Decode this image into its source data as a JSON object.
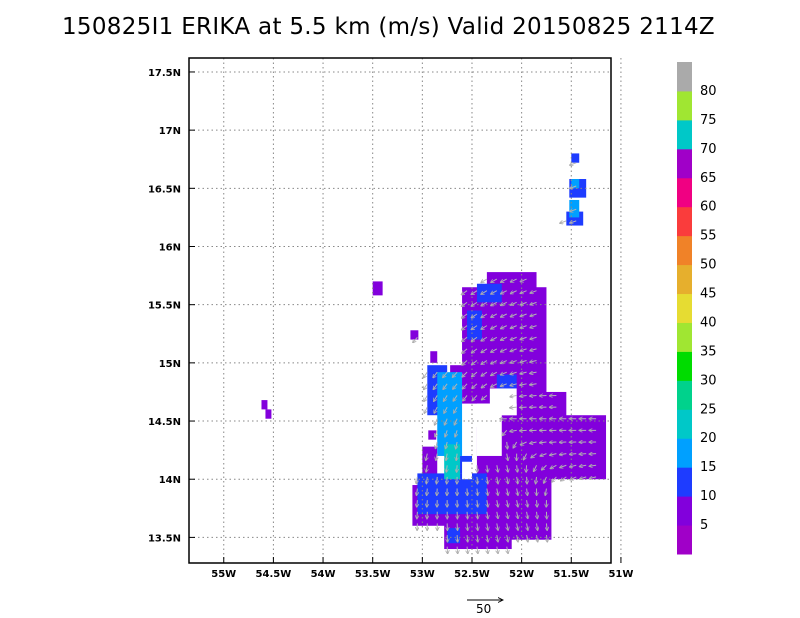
{
  "chart_data": {
    "type": "heatmap",
    "title": "150825I1 ERIKA at 5.5 km (m/s) Valid 20150825 2114Z",
    "x_ticks": [
      {
        "v": -55.0,
        "label": "55W"
      },
      {
        "v": -54.5,
        "label": "54.5W"
      },
      {
        "v": -54.0,
        "label": "54W"
      },
      {
        "v": -53.5,
        "label": "53.5W"
      },
      {
        "v": -53.0,
        "label": "53W"
      },
      {
        "v": -52.5,
        "label": "52.5W"
      },
      {
        "v": -52.0,
        "label": "52W"
      },
      {
        "v": -51.5,
        "label": "51.5W"
      },
      {
        "v": -51.0,
        "label": "51W"
      }
    ],
    "y_ticks": [
      {
        "v": 13.5,
        "label": "13.5N"
      },
      {
        "v": 14.0,
        "label": "14N"
      },
      {
        "v": 14.5,
        "label": "14.5N"
      },
      {
        "v": 15.0,
        "label": "15N"
      },
      {
        "v": 15.5,
        "label": "15.5N"
      },
      {
        "v": 16.0,
        "label": "16N"
      },
      {
        "v": 16.5,
        "label": "16.5N"
      },
      {
        "v": 17.0,
        "label": "17N"
      },
      {
        "v": 17.5,
        "label": "17.5N"
      }
    ],
    "xlim": [
      -55.35,
      -51.1
    ],
    "ylim": [
      13.28,
      17.62
    ],
    "grid": true,
    "colorbar": {
      "labels": [
        "5",
        "10",
        "15",
        "20",
        "25",
        "30",
        "35",
        "40",
        "45",
        "50",
        "55",
        "60",
        "65",
        "70",
        "75",
        "80"
      ],
      "colors": [
        "#a000c8",
        "#8200dc",
        "#1e3cff",
        "#00a0ff",
        "#00c8c8",
        "#00d28c",
        "#00dc00",
        "#a0e632",
        "#e6dc32",
        "#e6af2d",
        "#f08228",
        "#fa3c3c",
        "#f00082",
        "#a000c8",
        "#00c8c8",
        "#a0e632",
        "#aaaaaa"
      ]
    },
    "regions": [
      {
        "level": "5",
        "rects": [
          [
            -52.78,
            13.4,
            -52.1,
            14.05
          ],
          [
            -52.45,
            14.0,
            -51.15,
            14.55
          ],
          [
            -52.3,
            13.48,
            -51.7,
            14.08
          ],
          [
            -52.6,
            14.65,
            -51.75,
            15.65
          ],
          [
            -52.35,
            15.55,
            -51.85,
            15.78
          ],
          [
            -52.05,
            14.3,
            -51.55,
            14.75
          ],
          [
            -53.1,
            13.6,
            -52.6,
            13.95
          ],
          [
            -53.0,
            13.98,
            -52.85,
            14.28
          ],
          [
            -52.82,
            14.3,
            -52.62,
            14.75
          ],
          [
            -52.72,
            14.78,
            -52.58,
            14.98
          ],
          [
            -51.35,
            14.2,
            -51.2,
            14.4
          ],
          [
            -53.5,
            15.58,
            -53.4,
            15.7
          ],
          [
            -52.92,
            15.0,
            -52.85,
            15.1
          ],
          [
            -53.12,
            15.2,
            -53.04,
            15.28
          ],
          [
            -54.62,
            14.6,
            -54.56,
            14.68
          ],
          [
            -54.58,
            14.52,
            -54.52,
            14.6
          ],
          [
            -52.94,
            14.34,
            -52.86,
            14.42
          ]
        ]
      },
      {
        "level": "10",
        "rects": [
          [
            -53.05,
            13.7,
            -52.35,
            14.05
          ],
          [
            -52.95,
            14.55,
            -52.75,
            14.98
          ],
          [
            -52.55,
            15.2,
            -52.4,
            15.45
          ],
          [
            -52.25,
            14.78,
            -52.05,
            14.9
          ],
          [
            -52.45,
            15.52,
            -52.2,
            15.68
          ],
          [
            -52.7,
            14.05,
            -52.5,
            14.2
          ],
          [
            -51.55,
            16.18,
            -51.38,
            16.3
          ],
          [
            -51.52,
            16.42,
            -51.35,
            16.58
          ],
          [
            -51.5,
            16.72,
            -51.42,
            16.8
          ],
          [
            -52.75,
            13.45,
            -52.62,
            13.58
          ]
        ]
      },
      {
        "level": "15",
        "rects": [
          [
            -52.85,
            14.2,
            -52.6,
            14.92
          ],
          [
            -51.52,
            16.25,
            -51.42,
            16.4
          ],
          [
            -51.5,
            16.5,
            -51.42,
            16.58
          ]
        ]
      },
      {
        "level": "20",
        "rects": [
          [
            -52.78,
            14.0,
            -52.62,
            14.3
          ]
        ]
      }
    ],
    "holes": [
      [
        -52.45,
        14.2,
        -52.2,
        14.65
      ],
      [
        -52.32,
        14.55,
        -52.05,
        14.78
      ],
      [
        -52.55,
        14.45,
        -52.42,
        14.6
      ],
      [
        -52.6,
        14.0,
        -52.5,
        14.15
      ]
    ],
    "vector_scale": {
      "label": "50"
    }
  }
}
